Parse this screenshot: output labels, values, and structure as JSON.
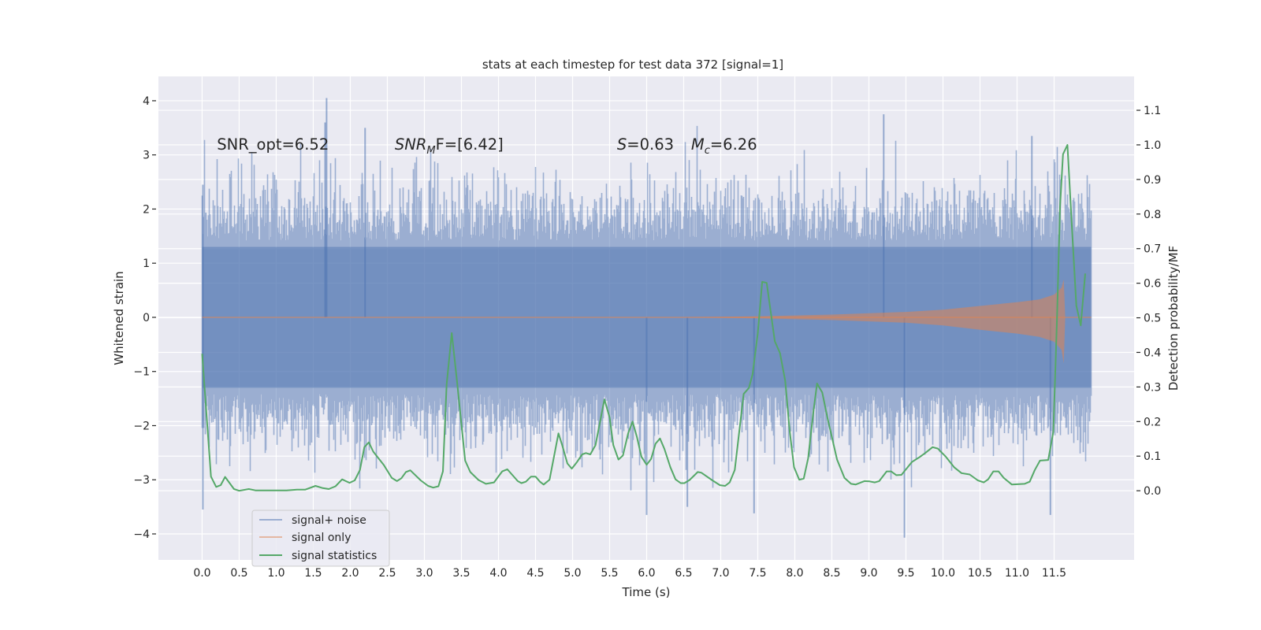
{
  "chart_data": {
    "type": "line",
    "title": "stats at each timestep for test data 372 [signal=1]",
    "xlabel": "Time (s)",
    "ylabel": "Whitened strain",
    "ylabel_right": "Detection probability/MF",
    "xlim": [
      -0.59,
      12.58
    ],
    "ylim": [
      -4.48,
      4.45
    ],
    "ylim_right": [
      -0.2,
      1.198
    ],
    "grid": true,
    "x_ticks": [
      "0.0",
      "0.5",
      "1.0",
      "1.5",
      "2.0",
      "2.5",
      "3.0",
      "3.5",
      "4.0",
      "4.5",
      "5.0",
      "5.5",
      "6.0",
      "6.5",
      "7.0",
      "7.5",
      "8.0",
      "8.5",
      "9.0",
      "9.5",
      "10.0",
      "10.5",
      "11.0",
      "11.5"
    ],
    "y_ticks": [
      "4",
      "3",
      "2",
      "1",
      "0",
      "−1",
      "−2",
      "−3",
      "−4"
    ],
    "y_tick_values": [
      4,
      3,
      2,
      1,
      0,
      -1,
      -2,
      -3,
      -4
    ],
    "y_ticks_right": [
      "1.1",
      "1.0",
      "0.9",
      "0.8",
      "0.7",
      "0.6",
      "0.5",
      "0.4",
      "0.3",
      "0.2",
      "0.1",
      "0.0"
    ],
    "y_tick_values_right": [
      1.1,
      1.0,
      0.9,
      0.8,
      0.7,
      0.6,
      0.5,
      0.4,
      0.3,
      0.2,
      0.1,
      0.0
    ],
    "annotations": [
      {
        "text": "SNR_opt=6.52",
        "t": 0.2,
        "y": 3.2
      },
      {
        "text": "SNR",
        "sub": "M",
        "tail": "F=[6.42]",
        "t": 2.6,
        "y": 3.2
      },
      {
        "text": "S",
        "tail": "=0.63",
        "t": 5.6,
        "y": 3.2
      },
      {
        "text": "M",
        "sub": "c",
        "tail": "=6.26",
        "t": 6.6,
        "y": 3.2
      }
    ],
    "legend": {
      "placement": "lower-left",
      "entries": [
        "signal+ noise",
        "signal only",
        "signal statistics"
      ]
    },
    "colors": {
      "signal_noise": "#4c72b0",
      "signal_only": "#dd8452",
      "statistics": "#55a868",
      "background": "#eaeaf2",
      "grid": "#ffffff"
    },
    "series": [
      {
        "name": "signal+ noise",
        "axis": "left",
        "t_range": [
          0.0,
          12.0
        ],
        "core_band": 1.3,
        "typical_peak": 1.9,
        "seed": 372,
        "extremes": [
          {
            "t": 0.01,
            "y": -3.55
          },
          {
            "t": 0.01,
            "y": 2.45
          },
          {
            "t": 1.68,
            "y": 4.05
          },
          {
            "t": 1.66,
            "y": 3.6
          },
          {
            "t": 2.2,
            "y": 3.5
          },
          {
            "t": 9.48,
            "y": -4.07
          },
          {
            "t": 9.2,
            "y": 3.75
          },
          {
            "t": 11.2,
            "y": 3.35
          },
          {
            "t": 11.45,
            "y": -3.65
          },
          {
            "t": 6.0,
            "y": -3.65
          },
          {
            "t": 6.55,
            "y": -3.5
          },
          {
            "t": 7.45,
            "y": -3.62
          }
        ]
      },
      {
        "name": "signal only",
        "axis": "left",
        "t": [
          0,
          6.5,
          7.5,
          8.5,
          9.5,
          10.0,
          10.5,
          11.0,
          11.3,
          11.5,
          11.6,
          11.63,
          11.65,
          12.0
        ],
        "upper": [
          0,
          0.0,
          0.02,
          0.05,
          0.1,
          0.14,
          0.21,
          0.28,
          0.33,
          0.42,
          0.55,
          0.7,
          0,
          0
        ],
        "lower": [
          0,
          0.0,
          -0.02,
          -0.05,
          -0.1,
          -0.15,
          -0.23,
          -0.3,
          -0.36,
          -0.45,
          -0.6,
          -0.85,
          0,
          0
        ]
      },
      {
        "name": "signal statistics",
        "axis": "right",
        "t": [
          0.0,
          0.12,
          0.19,
          0.25,
          0.31,
          0.43,
          0.5,
          0.63,
          0.72,
          0.96,
          1.14,
          1.28,
          1.39,
          1.53,
          1.62,
          1.71,
          1.8,
          1.89,
          1.99,
          2.06,
          2.13,
          2.19,
          2.25,
          2.31,
          2.45,
          2.56,
          2.63,
          2.69,
          2.75,
          2.81,
          2.95,
          3.05,
          3.12,
          3.19,
          3.25,
          3.3,
          3.37,
          3.44,
          3.55,
          3.62,
          3.73,
          3.83,
          3.94,
          4.05,
          4.12,
          4.26,
          4.31,
          4.37,
          4.44,
          4.5,
          4.56,
          4.61,
          4.69,
          4.81,
          4.86,
          4.93,
          4.99,
          5.06,
          5.13,
          5.18,
          5.24,
          5.31,
          5.43,
          5.5,
          5.55,
          5.62,
          5.68,
          5.75,
          5.81,
          5.87,
          5.93,
          6.0,
          6.06,
          6.12,
          6.18,
          6.24,
          6.32,
          6.39,
          6.46,
          6.51,
          6.58,
          6.69,
          6.74,
          6.88,
          6.99,
          7.06,
          7.12,
          7.19,
          7.26,
          7.31,
          7.38,
          7.43,
          7.5,
          7.56,
          7.62,
          7.73,
          7.8,
          7.87,
          7.93,
          7.99,
          8.06,
          8.12,
          8.18,
          8.25,
          8.3,
          8.37,
          8.44,
          8.57,
          8.67,
          8.76,
          8.82,
          8.94,
          9.01,
          9.08,
          9.14,
          9.24,
          9.3,
          9.37,
          9.44,
          9.58,
          9.69,
          9.76,
          9.86,
          9.93,
          10.04,
          10.15,
          10.25,
          10.36,
          10.47,
          10.55,
          10.61,
          10.68,
          10.75,
          10.82,
          10.93,
          11.1,
          11.17,
          11.24,
          11.31,
          11.42,
          11.49,
          11.54,
          11.58,
          11.62,
          11.68,
          11.74,
          11.8,
          11.86,
          11.92
        ],
        "values": [
          0.396,
          0.041,
          0.011,
          0.016,
          0.04,
          0.005,
          0.0,
          0.005,
          0.001,
          0.001,
          0.001,
          0.003,
          0.003,
          0.014,
          0.008,
          0.005,
          0.013,
          0.033,
          0.023,
          0.03,
          0.06,
          0.126,
          0.14,
          0.113,
          0.075,
          0.037,
          0.028,
          0.036,
          0.054,
          0.059,
          0.03,
          0.014,
          0.009,
          0.013,
          0.056,
          0.307,
          0.456,
          0.318,
          0.087,
          0.054,
          0.031,
          0.02,
          0.024,
          0.056,
          0.062,
          0.028,
          0.022,
          0.026,
          0.041,
          0.041,
          0.026,
          0.018,
          0.032,
          0.166,
          0.132,
          0.079,
          0.064,
          0.083,
          0.105,
          0.109,
          0.105,
          0.132,
          0.264,
          0.212,
          0.132,
          0.09,
          0.102,
          0.166,
          0.2,
          0.155,
          0.098,
          0.075,
          0.092,
          0.136,
          0.151,
          0.121,
          0.068,
          0.033,
          0.022,
          0.022,
          0.031,
          0.054,
          0.052,
          0.031,
          0.016,
          0.014,
          0.024,
          0.06,
          0.189,
          0.28,
          0.297,
          0.337,
          0.455,
          0.604,
          0.601,
          0.432,
          0.398,
          0.318,
          0.174,
          0.068,
          0.032,
          0.035,
          0.094,
          0.227,
          0.31,
          0.284,
          0.212,
          0.09,
          0.037,
          0.02,
          0.018,
          0.028,
          0.027,
          0.024,
          0.028,
          0.056,
          0.056,
          0.045,
          0.046,
          0.083,
          0.098,
          0.109,
          0.126,
          0.122,
          0.098,
          0.068,
          0.051,
          0.047,
          0.03,
          0.024,
          0.033,
          0.056,
          0.056,
          0.037,
          0.018,
          0.02,
          0.026,
          0.06,
          0.087,
          0.089,
          0.17,
          0.5,
          0.82,
          0.973,
          1.0,
          0.766,
          0.535,
          0.478,
          0.628
        ]
      }
    ]
  }
}
